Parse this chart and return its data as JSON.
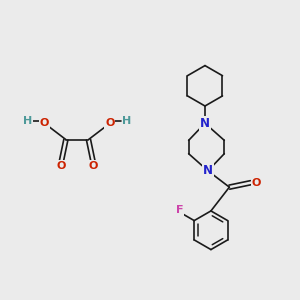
{
  "bg_color": "#ebebeb",
  "bond_color": "#1a1a1a",
  "N_color": "#2222cc",
  "O_color": "#cc2200",
  "F_color": "#cc44aa",
  "H_color": "#4d9999",
  "bond_width": 1.2,
  "figsize": [
    3.0,
    3.0
  ],
  "dpi": 100,
  "xlim": [
    0,
    10
  ],
  "ylim": [
    0,
    10
  ]
}
